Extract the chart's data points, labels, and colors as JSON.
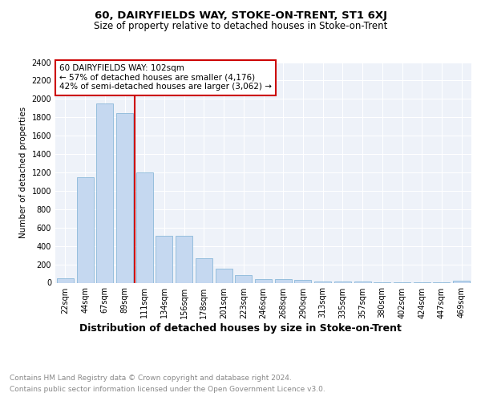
{
  "title": "60, DAIRYFIELDS WAY, STOKE-ON-TRENT, ST1 6XJ",
  "subtitle": "Size of property relative to detached houses in Stoke-on-Trent",
  "xlabel": "Distribution of detached houses by size in Stoke-on-Trent",
  "ylabel": "Number of detached properties",
  "categories": [
    "22sqm",
    "44sqm",
    "67sqm",
    "89sqm",
    "111sqm",
    "134sqm",
    "156sqm",
    "178sqm",
    "201sqm",
    "223sqm",
    "246sqm",
    "268sqm",
    "290sqm",
    "313sqm",
    "335sqm",
    "357sqm",
    "380sqm",
    "402sqm",
    "424sqm",
    "447sqm",
    "469sqm"
  ],
  "values": [
    50,
    1150,
    1950,
    1850,
    1200,
    510,
    510,
    270,
    155,
    80,
    40,
    35,
    30,
    15,
    10,
    10,
    8,
    5,
    5,
    5,
    20
  ],
  "bar_color": "#c5d8f0",
  "bar_edge_color": "#7bafd4",
  "vline_color": "#cc0000",
  "annotation_text": "60 DAIRYFIELDS WAY: 102sqm\n← 57% of detached houses are smaller (4,176)\n42% of semi-detached houses are larger (3,062) →",
  "annotation_box_color": "#ffffff",
  "annotation_box_edge": "#cc0000",
  "ylim": [
    0,
    2400
  ],
  "yticks": [
    0,
    200,
    400,
    600,
    800,
    1000,
    1200,
    1400,
    1600,
    1800,
    2000,
    2200,
    2400
  ],
  "footer_line1": "Contains HM Land Registry data © Crown copyright and database right 2024.",
  "footer_line2": "Contains public sector information licensed under the Open Government Licence v3.0.",
  "bg_color": "#eef2f9",
  "title_fontsize": 9.5,
  "subtitle_fontsize": 8.5,
  "xlabel_fontsize": 9,
  "ylabel_fontsize": 7.5,
  "tick_fontsize": 7,
  "footer_fontsize": 6.5,
  "annotation_fontsize": 7.5
}
